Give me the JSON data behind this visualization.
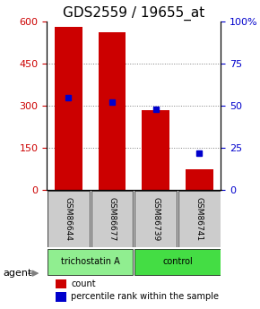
{
  "title": "GDS2559 / 19655_at",
  "samples": [
    "GSM86644",
    "GSM86677",
    "GSM86739",
    "GSM86741"
  ],
  "counts": [
    580,
    563,
    285,
    75
  ],
  "percentiles": [
    55.0,
    52.0,
    48.0,
    22.0
  ],
  "ylim_left": [
    0,
    600
  ],
  "ylim_right": [
    0,
    100
  ],
  "yticks_left": [
    0,
    150,
    300,
    450,
    600
  ],
  "yticks_right": [
    0,
    25,
    50,
    75,
    100
  ],
  "bar_color": "#cc0000",
  "pct_color": "#0000cc",
  "bar_width": 0.35,
  "groups": [
    {
      "label": "trichostatin A",
      "samples": [
        0,
        1
      ],
      "color": "#90ee90"
    },
    {
      "label": "control",
      "samples": [
        2,
        3
      ],
      "color": "#44dd44"
    }
  ],
  "sample_box_color": "#cccccc",
  "agent_label": "agent",
  "legend_count_label": "count",
  "legend_pct_label": "percentile rank within the sample",
  "title_fontsize": 11,
  "axis_label_color_left": "#cc0000",
  "axis_label_color_right": "#0000cc"
}
